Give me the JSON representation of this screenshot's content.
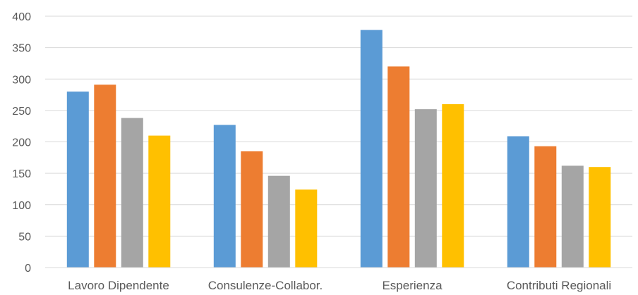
{
  "chart_data": {
    "type": "bar",
    "categories": [
      "Lavoro Dipendente",
      "Consulenze-Collabor.",
      "Esperienza",
      "Contributi Regionali"
    ],
    "series": [
      {
        "color": "#5B9BD5",
        "values": [
          280,
          227,
          378,
          209
        ]
      },
      {
        "color": "#ED7D31",
        "values": [
          291,
          185,
          320,
          193
        ]
      },
      {
        "color": "#A5A5A5",
        "values": [
          238,
          146,
          252,
          162
        ]
      },
      {
        "color": "#FFC000",
        "values": [
          210,
          124,
          260,
          160
        ]
      }
    ],
    "title": "",
    "xlabel": "",
    "ylabel": "",
    "ylim": [
      0,
      400
    ],
    "yticks": [
      0,
      50,
      100,
      150,
      200,
      250,
      300,
      350,
      400
    ],
    "grid": true,
    "legend": "none",
    "colors": {
      "grid": "#D9D9D9",
      "axis": "#D9D9D9",
      "text": "#595959"
    }
  }
}
